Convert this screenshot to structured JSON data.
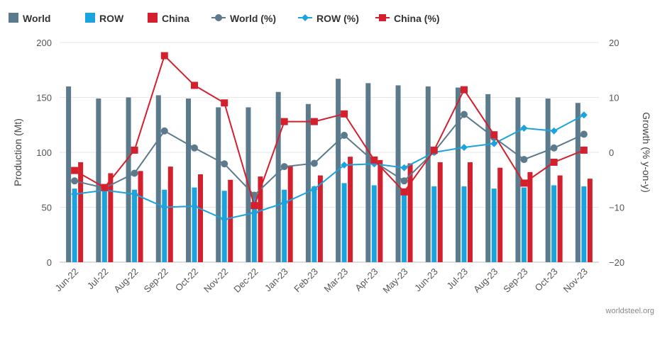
{
  "chart_data": {
    "type": "bar",
    "categories": [
      "Jun-22",
      "Jul-22",
      "Aug-22",
      "Sep-22",
      "Oct-22",
      "Nov-22",
      "Dec-22",
      "Jan-23",
      "Feb-23",
      "Mar-23",
      "Apr-23",
      "May-23",
      "Jun-23",
      "Jul-23",
      "Aug-23",
      "Sep-23",
      "Oct-23",
      "Nov-23"
    ],
    "ylabel_left": "Production (Mt)",
    "ylabel_right": "Growth (% y-on-y)",
    "ylim_left": [
      0,
      200
    ],
    "ylim_right": [
      -20,
      20
    ],
    "yticks_left": [
      "0",
      "50",
      "100",
      "150",
      "200"
    ],
    "yticks_right": [
      "−20",
      "−10",
      "0",
      "10",
      "20"
    ],
    "grid": true,
    "legend_position": "top-left",
    "credit": "worldsteel.org",
    "series": [
      {
        "name": "World",
        "type": "bar",
        "axis": "left",
        "color": "#5b7a8c",
        "values": [
          160,
          149,
          150,
          152,
          149,
          141,
          141,
          155,
          144,
          167,
          163,
          161,
          160,
          159,
          153,
          150,
          149,
          145
        ]
      },
      {
        "name": "ROW",
        "type": "bar",
        "axis": "left",
        "color": "#1aa3dc",
        "values": [
          67,
          68,
          66,
          66,
          68,
          65,
          62,
          66,
          69,
          72,
          70,
          67,
          69,
          69,
          67,
          68,
          70,
          69
        ]
      },
      {
        "name": "China",
        "type": "bar",
        "axis": "left",
        "color": "#d4202d",
        "values": [
          91,
          81,
          83,
          87,
          80,
          75,
          78,
          88,
          79,
          96,
          93,
          90,
          91,
          91,
          86,
          82,
          79,
          76
        ]
      },
      {
        "name": "World (%)",
        "type": "line",
        "axis": "right",
        "color": "#5b7a8c",
        "values": [
          -5.2,
          -6.5,
          -3.8,
          3.9,
          0.8,
          -2.1,
          -7.8,
          -2.6,
          -2.0,
          3.1,
          -1.7,
          -5.2,
          0.1,
          6.9,
          2.7,
          -1.3,
          0.8,
          3.3
        ]
      },
      {
        "name": "ROW (%)",
        "type": "line",
        "axis": "right",
        "color": "#1aa3dc",
        "values": [
          -7.6,
          -6.9,
          -7.6,
          -10.0,
          -9.8,
          -12.2,
          -11.0,
          -9.2,
          -6.7,
          -2.3,
          -2.1,
          -2.8,
          0.0,
          0.9,
          1.6,
          4.4,
          3.9,
          6.8
        ]
      },
      {
        "name": "China (%)",
        "type": "line",
        "axis": "right",
        "color": "#d4202d",
        "values": [
          -3.3,
          -6.4,
          0.4,
          17.6,
          12.2,
          9.0,
          -9.7,
          5.6,
          5.6,
          7.0,
          -1.4,
          -7.2,
          0.4,
          11.4,
          3.2,
          -5.6,
          -1.8,
          0.4
        ]
      }
    ]
  }
}
